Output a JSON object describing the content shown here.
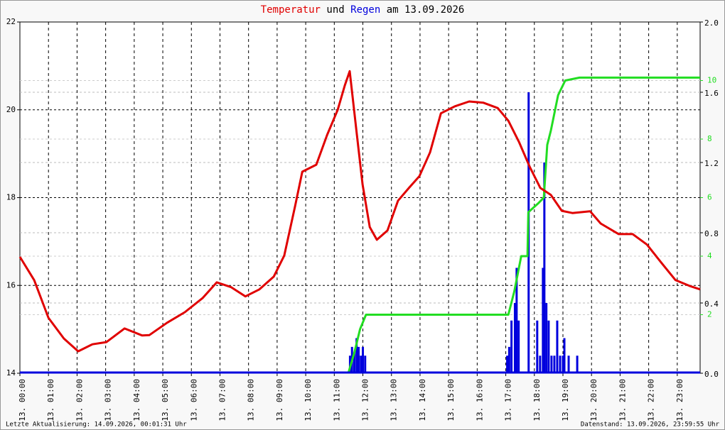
{
  "chart_data": {
    "type": "line",
    "title": [
      "Temperatur",
      "und",
      "Regen",
      "am 13.09.2026"
    ],
    "title_colors": [
      "#e00000",
      "#000000",
      "#0000dd",
      "#000000"
    ],
    "xlim": [
      0,
      23.8
    ],
    "xticks": [
      {
        "value": 0,
        "label": "13. 00:00"
      },
      {
        "value": 1,
        "label": "13. 01:00"
      },
      {
        "value": 2,
        "label": "13. 02:00"
      },
      {
        "value": 3,
        "label": "13. 03:00"
      },
      {
        "value": 4,
        "label": "13. 04:00"
      },
      {
        "value": 5,
        "label": "13. 05:00"
      },
      {
        "value": 6,
        "label": "13. 06:00"
      },
      {
        "value": 7,
        "label": "13. 07:00"
      },
      {
        "value": 8,
        "label": "13. 08:00"
      },
      {
        "value": 9,
        "label": "13. 09:00"
      },
      {
        "value": 10,
        "label": "13. 10:00"
      },
      {
        "value": 11,
        "label": "13. 11:00"
      },
      {
        "value": 12,
        "label": "13. 12:00"
      },
      {
        "value": 13,
        "label": "13. 13:00"
      },
      {
        "value": 14,
        "label": "13. 14:00"
      },
      {
        "value": 15,
        "label": "13. 15:00"
      },
      {
        "value": 16,
        "label": "13. 16:00"
      },
      {
        "value": 17,
        "label": "13. 17:00"
      },
      {
        "value": 18,
        "label": "13. 18:00"
      },
      {
        "value": 19,
        "label": "13. 19:00"
      },
      {
        "value": 20,
        "label": "13. 20:00"
      },
      {
        "value": 21,
        "label": "13. 21:00"
      },
      {
        "value": 22,
        "label": "13. 22:00"
      },
      {
        "value": 23,
        "label": "13. 23:00"
      }
    ],
    "ylim": [
      14,
      22
    ],
    "yticks": [
      14,
      16,
      18,
      20,
      22
    ],
    "y2lim": [
      0,
      2
    ],
    "y2ticks": [
      {
        "value": 0,
        "label": "0.0"
      },
      {
        "value": 0.4,
        "label": "0.4"
      },
      {
        "value": 0.8,
        "label": "0.8"
      },
      {
        "value": 1.2,
        "label": "1.2"
      },
      {
        "value": 1.6,
        "label": "1.6"
      },
      {
        "value": 2,
        "label": "2.0"
      }
    ],
    "y3lim": [
      0,
      12
    ],
    "y3ticks": [
      2,
      4,
      6,
      8,
      10
    ],
    "y3color": "#22dd22",
    "grid": true,
    "series": [
      {
        "type": "line",
        "axis": "y",
        "color": "#e00000",
        "x": [
          0,
          0.5,
          1.0,
          1.54,
          2.04,
          2.54,
          3.03,
          3.66,
          4.28,
          4.53,
          5.15,
          5.77,
          6.39,
          6.89,
          7.39,
          7.89,
          8.38,
          8.88,
          9.25,
          9.63,
          9.88,
          10.37,
          10.75,
          11.12,
          11.37,
          11.54,
          11.79,
          11.99,
          12.24,
          12.49,
          12.86,
          13.23,
          13.61,
          13.98,
          14.35,
          14.73,
          15.22,
          15.72,
          16.22,
          16.72,
          17.09,
          17.46,
          17.84,
          18.21,
          18.58,
          18.96,
          19.33,
          19.95,
          20.32,
          20.95,
          21.44,
          21.94,
          22.44,
          22.94,
          23.43,
          23.8
        ],
        "values": [
          16.65,
          16.12,
          15.26,
          14.79,
          14.5,
          14.66,
          14.71,
          15.02,
          14.86,
          14.87,
          15.15,
          15.39,
          15.71,
          16.07,
          15.96,
          15.75,
          15.91,
          16.2,
          16.68,
          17.81,
          18.59,
          18.75,
          19.43,
          20.0,
          20.56,
          20.88,
          19.43,
          18.3,
          17.33,
          17.04,
          17.25,
          17.93,
          18.22,
          18.49,
          19.03,
          19.92,
          20.08,
          20.19,
          20.16,
          20.04,
          19.75,
          19.27,
          18.7,
          18.22,
          18.06,
          17.7,
          17.65,
          17.69,
          17.41,
          17.17,
          17.17,
          16.93,
          16.52,
          16.12,
          15.99,
          15.91
        ]
      },
      {
        "type": "bar",
        "axis": "y2",
        "color": "#0000dd",
        "x": [
          11.55,
          11.62,
          11.7,
          11.78,
          11.85,
          11.93,
          12.0,
          12.08,
          17.05,
          17.12,
          17.2,
          17.32,
          17.38,
          17.45,
          17.8,
          18.1,
          18.2,
          18.3,
          18.35,
          18.42,
          18.5,
          18.6,
          18.7,
          18.8,
          18.9,
          19.0,
          19.05,
          19.2,
          19.5
        ],
        "values": [
          0.1,
          0.15,
          0.12,
          0.2,
          0.15,
          0.1,
          0.15,
          0.1,
          0.1,
          0.15,
          0.3,
          0.4,
          0.6,
          0.3,
          1.6,
          0.3,
          0.1,
          0.6,
          1.2,
          0.4,
          0.3,
          0.1,
          0.1,
          0.3,
          0.1,
          0.1,
          0.2,
          0.1,
          0.1
        ]
      },
      {
        "type": "line",
        "axis": "y3",
        "color": "#22dd22",
        "x": [
          11.49,
          11.7,
          11.9,
          12.11,
          17.09,
          17.3,
          17.54,
          17.76,
          17.79,
          18.13,
          18.33,
          18.45,
          18.58,
          18.83,
          19.08,
          19.58,
          23.8
        ],
        "values": [
          0,
          0.7,
          1.5,
          2,
          2,
          2.8,
          4,
          4,
          5.5,
          5.8,
          6,
          7.8,
          8.3,
          9.5,
          10,
          10.1,
          10.1
        ]
      }
    ]
  },
  "footer": {
    "left": "Letzte Aktualisierung: 14.09.2026, 00:01:31 Uhr",
    "right": "Datenstand: 13.09.2026, 23:59:55 Uhr"
  }
}
